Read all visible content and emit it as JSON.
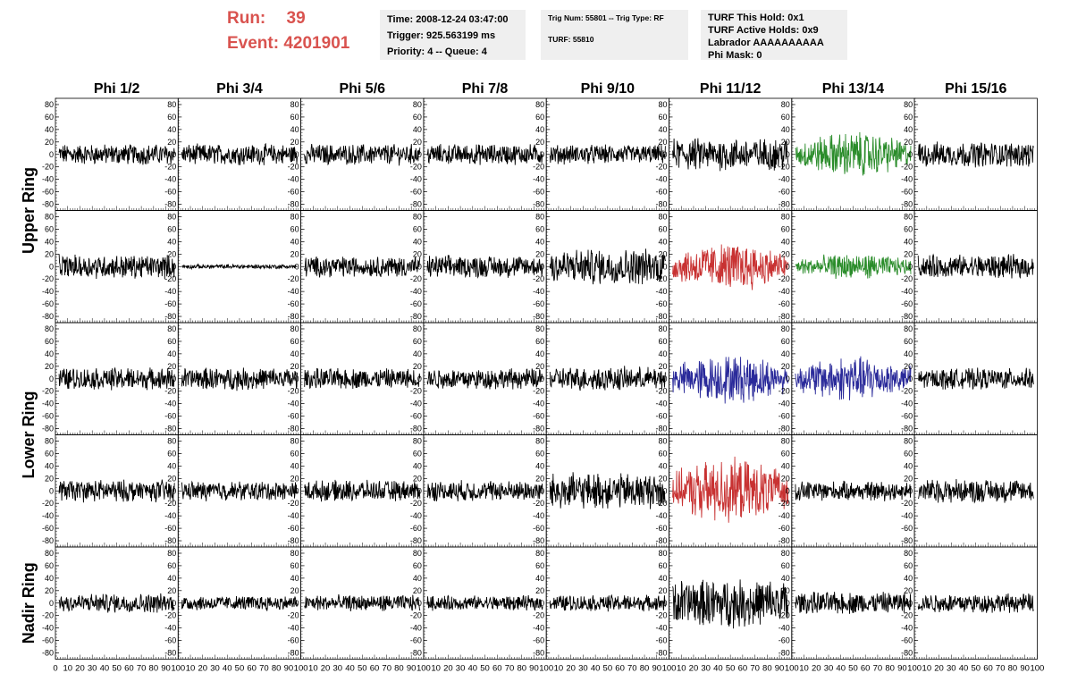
{
  "header": {
    "run_label": "Run:",
    "run_value": "39",
    "event_label": "Event:",
    "event_value": "4201901",
    "accent_color": "#d9534f"
  },
  "info": {
    "time": "Time: 2008-12-24 03:47:00",
    "trigger": "Trigger: 925.563199 ms",
    "priority": "Priority: 4 -- Queue: 4",
    "trig_num": "Trig Num: 55801 -- Trig Type: RF",
    "turf": "TURF: 55810",
    "turf_this_hold": "TURF This Hold: 0x1",
    "turf_active_holds": "TURF Active Holds: 0x9",
    "labrador": "Labrador AAAAAAAAAA",
    "phi_mask": "Phi Mask: 0"
  },
  "chart_data": {
    "type": "line",
    "columns": [
      "Phi 1/2",
      "Phi 3/4",
      "Phi 5/6",
      "Phi 7/8",
      "Phi 9/10",
      "Phi 11/12",
      "Phi 13/14",
      "Phi 15/16"
    ],
    "ring_labels": [
      {
        "label": "Upper Ring",
        "rows": [
          0,
          1
        ]
      },
      {
        "label": "Lower Ring",
        "rows": [
          2,
          3
        ]
      },
      {
        "label": "Nadir Ring",
        "rows": [
          4
        ]
      }
    ],
    "ylim": [
      -90,
      90
    ],
    "yticks": [
      "80",
      "60",
      "40",
      "20",
      "0",
      "-20",
      "-40",
      "-60",
      "-80"
    ],
    "xlim": [
      0,
      100
    ],
    "xticks_first": [
      "0",
      "10",
      "20",
      "30",
      "40",
      "50",
      "60",
      "70",
      "80",
      "90",
      "100"
    ],
    "xticks_other": [
      "10",
      "20",
      "30",
      "40",
      "50",
      "60",
      "70",
      "80",
      "90",
      "100"
    ],
    "colors": {
      "normal": "#000000",
      "green": "#2a8c2a",
      "red": "#c83232",
      "blue": "#2a2a9a"
    },
    "panel_amplitudes": [
      [
        14,
        14,
        14,
        14,
        13,
        22,
        28,
        17
      ],
      [
        16,
        3,
        14,
        15,
        24,
        30,
        16,
        16
      ],
      [
        15,
        15,
        14,
        14,
        16,
        30,
        28,
        14
      ],
      [
        15,
        13,
        14,
        14,
        24,
        40,
        13,
        16
      ],
      [
        13,
        10,
        11,
        10,
        11,
        32,
        15,
        13
      ]
    ],
    "panel_colors": [
      [
        "normal",
        "normal",
        "normal",
        "normal",
        "normal",
        "normal",
        "green",
        "normal"
      ],
      [
        "normal",
        "normal",
        "normal",
        "normal",
        "normal",
        "red",
        "green",
        "normal"
      ],
      [
        "normal",
        "normal",
        "normal",
        "normal",
        "normal",
        "blue",
        "blue",
        "normal"
      ],
      [
        "normal",
        "normal",
        "normal",
        "normal",
        "normal",
        "red",
        "normal",
        "normal"
      ],
      [
        "normal",
        "normal",
        "normal",
        "normal",
        "normal",
        "normal",
        "normal",
        "normal"
      ]
    ]
  }
}
